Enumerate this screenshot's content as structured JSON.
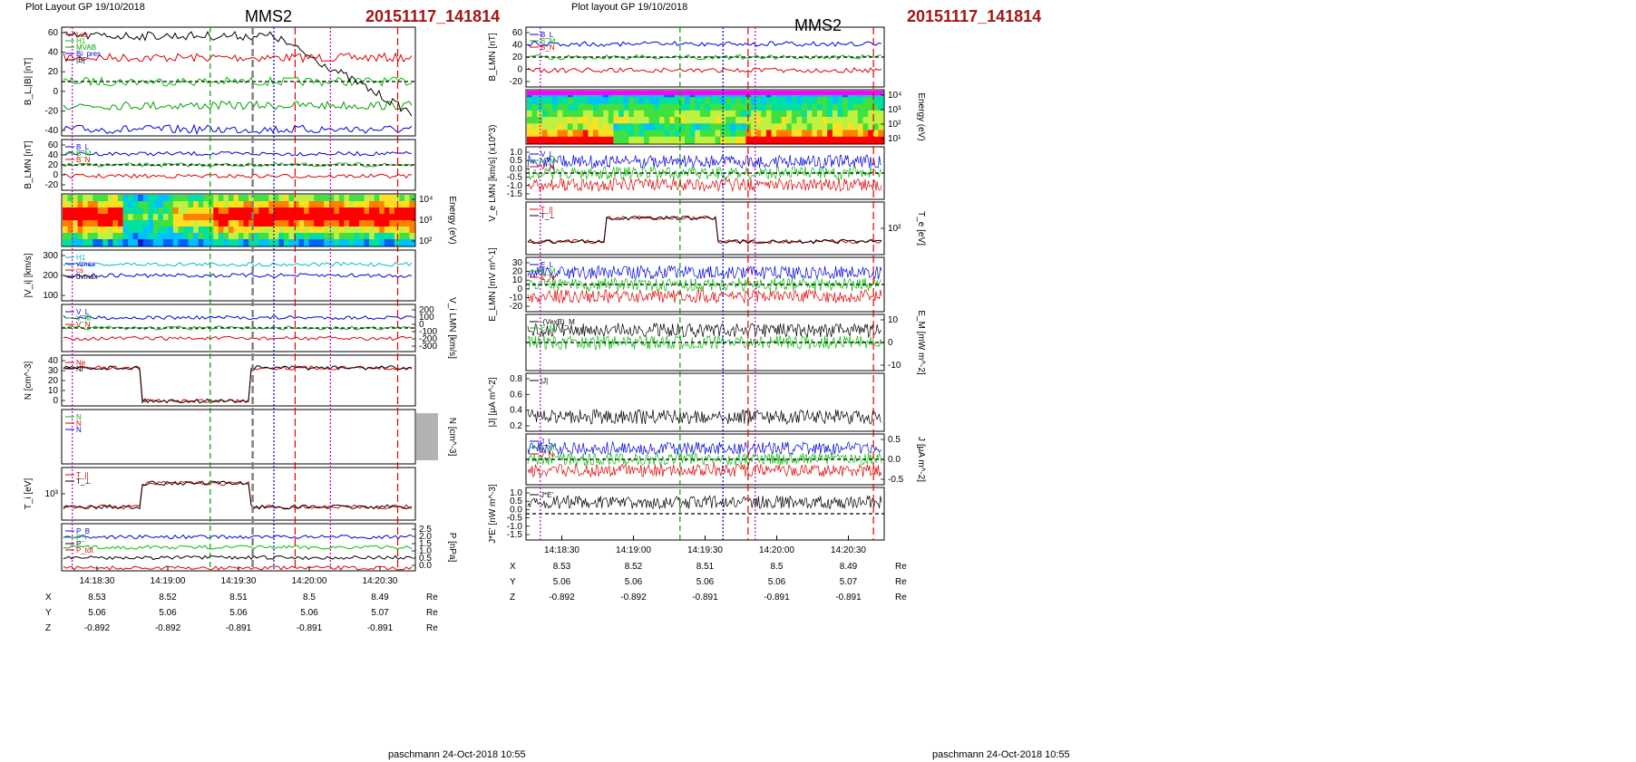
{
  "pages": [
    {
      "header": "Plot Layout GP 19/10/2018",
      "spacecraft": "MMS2",
      "event": "20151117_141814",
      "footer": "paschmann 24-Oct-2018 10:55",
      "time_ticks": [
        "14:18:30",
        "14:19:00",
        "14:19:30",
        "14:20:00",
        "14:20:30"
      ],
      "panels": [
        {
          "ylabel": "B_L,|B| [nT]",
          "yticks": [
            "60",
            "40",
            "20",
            "0",
            "-20",
            "-40"
          ],
          "legend": [
            "Los",
            "H1",
            "MVAB",
            "Bi_pres",
            "|B|"
          ],
          "plot": "bl",
          "legend_colors": [
            "#e00000",
            "#00c000",
            "#00a000",
            "#0000e0",
            "#000000"
          ]
        },
        {
          "ylabel": "B_LMN [nT]",
          "yticks": [
            "60",
            "40",
            "20",
            "0",
            "-20"
          ],
          "legend": [
            "B_L",
            "B_M",
            "B_N"
          ],
          "plot": "blmn",
          "legend_colors": [
            "#0000e0",
            "#00c000",
            "#e00000"
          ]
        },
        {
          "ylabel": "Energy (eV)",
          "yticks": [
            "10^4",
            "10^3",
            "10^2"
          ],
          "legend": [],
          "plot": "spec_i",
          "legend_colors": []
        },
        {
          "ylabel": "|V_i| [km/s]",
          "yticks": [
            "300",
            "200",
            "100"
          ],
          "legend": [
            "H1",
            "vimax",
            "cs",
            "dvmax"
          ],
          "plot": "vi",
          "legend_colors": [
            "#00c0c0",
            "#0000e0",
            "#e00000",
            "#000000"
          ]
        },
        {
          "ylabel": "V_i LMN [km/s]",
          "yticks": [
            "200",
            "100",
            "0",
            "-100",
            "-200",
            "-300"
          ],
          "legend": [
            "V_L",
            "V_M",
            "V_N"
          ],
          "plot": "vlmn",
          "legend_colors": [
            "#0000e0",
            "#00c000",
            "#e00000"
          ]
        },
        {
          "ylabel": "N [cm^-3]",
          "yticks": [
            "40",
            "30",
            "20",
            "10",
            "0"
          ],
          "legend": [
            "Ne",
            "Ni"
          ],
          "plot": "n",
          "legend_colors": [
            "#e00000",
            "#000000"
          ]
        },
        {
          "ylabel": "N [cm^-3]",
          "yticks": [],
          "legend": [
            "N",
            "N",
            "N"
          ],
          "plot": "empty",
          "legend_colors": [
            "#00c000",
            "#e00000",
            "#0000e0"
          ]
        },
        {
          "ylabel": "T_i [eV]",
          "yticks": [
            "10^3"
          ],
          "legend": [
            "T_||",
            "T_⊥"
          ],
          "plot": "ti",
          "legend_colors": [
            "#e00000",
            "#000000"
          ]
        },
        {
          "ylabel": "P [nPa]",
          "yticks": [
            "2.5",
            "2.0",
            "1.5",
            "1.0",
            "0.5",
            "0.0"
          ],
          "legend": [
            "P_B",
            "P_i",
            "P",
            "P_tot"
          ],
          "plot": "p",
          "legend_colors": [
            "#0000e0",
            "#00c000",
            "#000000",
            "#e00000"
          ]
        }
      ],
      "coords": {
        "rows": [
          {
            "label": "X",
            "values": [
              "8.53",
              "8.52",
              "8.51",
              "8.5",
              "8.49"
            ],
            "unit": "Re"
          },
          {
            "label": "Y",
            "values": [
              "5.06",
              "5.06",
              "5.06",
              "5.06",
              "5.07"
            ],
            "unit": "Re"
          },
          {
            "label": "Z",
            "values": [
              "-0.892",
              "-0.892",
              "-0.891",
              "-0.891",
              "-0.891"
            ],
            "unit": "Re"
          }
        ]
      }
    },
    {
      "header": "Plot layout GP 19/10/2018",
      "spacecraft": "MMS2",
      "event": "20151117_141814",
      "footer": "paschmann 24-Oct-2018 10:55",
      "time_ticks": [
        "14:18:30",
        "14:19:00",
        "14:19:30",
        "14:20:00",
        "14:20:30"
      ],
      "panels": [
        {
          "ylabel": "B_LMN [nT]",
          "yticks": [
            "60",
            "40",
            "20",
            "0",
            "-20"
          ],
          "legend": [
            "B_L",
            "B_M",
            "B_N"
          ],
          "plot": "blmn",
          "legend_colors": [
            "#0000e0",
            "#00c000",
            "#e00000"
          ]
        },
        {
          "ylabel": "Energy (eV)",
          "yticks": [
            "10^4",
            "10^3",
            "10^2",
            "10^1"
          ],
          "legend": [],
          "plot": "spec_e",
          "legend_colors": []
        },
        {
          "ylabel": "V_e LMN [km/s] (x10^3)",
          "yticks": [
            "1.0",
            "0.5",
            "0.0",
            "-0.5",
            "-1.0",
            "-1.5"
          ],
          "legend": [
            "V_L",
            "V_M",
            "V_N"
          ],
          "plot": "velmn",
          "legend_colors": [
            "#0000e0",
            "#00c000",
            "#e00000"
          ]
        },
        {
          "ylabel": "T_e [eV]",
          "yticks": [
            "10^2"
          ],
          "legend": [
            "T_||",
            "T_⊥"
          ],
          "plot": "te",
          "legend_colors": [
            "#e00000",
            "#000000"
          ]
        },
        {
          "ylabel": "E_LMN [mV m^-1]",
          "yticks": [
            "30",
            "20",
            "10",
            "0",
            "-10",
            "-20"
          ],
          "legend": [
            "E_L",
            "E_M",
            "E_N"
          ],
          "plot": "elmn",
          "legend_colors": [
            "#0000e0",
            "#00c000",
            "#e00000"
          ]
        },
        {
          "ylabel": "E_M [mW m^-2]",
          "yticks": [
            "10",
            "0",
            "-10"
          ],
          "legend": [
            "-(VexB)_M",
            "E_M"
          ],
          "plot": "em",
          "legend_colors": [
            "#000000",
            "#00c000"
          ]
        },
        {
          "ylabel": "|J| [μA m^-2]",
          "yticks": [
            "0.8",
            "0.6",
            "0.4",
            "0.2"
          ],
          "legend": [
            "|J|"
          ],
          "plot": "j",
          "legend_colors": [
            "#000000"
          ]
        },
        {
          "ylabel": "J [μA m^-2]",
          "yticks": [
            "0.5",
            "0.0",
            "-0.5"
          ],
          "legend": [
            "J_L",
            "J_M",
            "J_N"
          ],
          "plot": "jlmn",
          "legend_colors": [
            "#0000e0",
            "#00c000",
            "#e00000"
          ]
        },
        {
          "ylabel": "J*E' [nW m^-3]",
          "yticks": [
            "1.0",
            "0.5",
            "0.0",
            "-0.5",
            "-1.0",
            "-1.5"
          ],
          "legend": [
            "J*E'"
          ],
          "plot": "je",
          "legend_colors": [
            "#000000"
          ]
        }
      ],
      "coords": {
        "rows": [
          {
            "label": "X",
            "values": [
              "8.53",
              "8.52",
              "8.51",
              "8.5",
              "8.49"
            ],
            "unit": "Re"
          },
          {
            "label": "Y",
            "values": [
              "5.06",
              "5.06",
              "5.06",
              "5.06",
              "5.07"
            ],
            "unit": "Re"
          },
          {
            "label": "Z",
            "values": [
              "-0.892",
              "-0.892",
              "-0.891",
              "-0.891",
              "-0.891"
            ],
            "unit": "Re"
          }
        ]
      }
    }
  ]
}
